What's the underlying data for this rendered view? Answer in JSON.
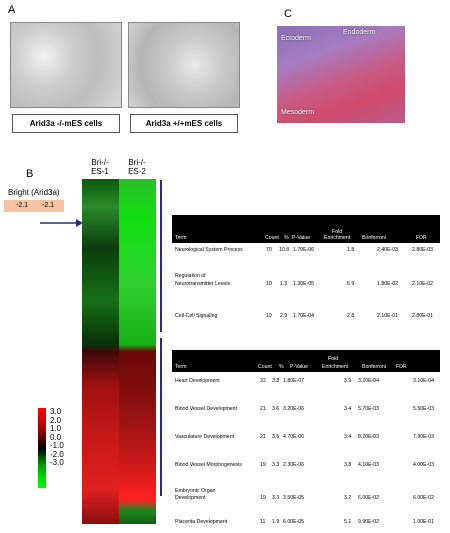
{
  "panels": {
    "a": "A",
    "b": "B",
    "c": "C"
  },
  "panel_a": {
    "caption_left": "Arid3a -/-mES cells",
    "caption_right": "Arid3a +/+mES cells"
  },
  "panel_c": {
    "label_ectoderm": "Ectoderm",
    "label_endoderm": "Endoderm",
    "label_mesoderm": "Mesoderm"
  },
  "heatmap": {
    "col1": [
      "Bri-/-",
      "ES-1"
    ],
    "col2": [
      "Bri-/-",
      "ES-2"
    ],
    "gene_label": "Bright (Arid3a)",
    "value1": "-2.1",
    "value2": "-2.1",
    "scale_ticks": [
      "3.0",
      "2.0",
      "1.0",
      "0.0",
      "-1.0",
      "-2.0",
      "-3.0"
    ]
  },
  "table1": {
    "headers": {
      "term": "Term",
      "count": "Count",
      "pct": "%",
      "pvalue": "P-Value",
      "fold1": "Fold",
      "fold2": "Enrichment",
      "bonf": "Bonferroni",
      "fdr": "FDR"
    },
    "rows": [
      {
        "term": [
          "Neurological System Process"
        ],
        "count": "70",
        "pct": "10.8",
        "pvalue": "1.70E-06",
        "fold": "1.8",
        "bonf": "2.40E-03",
        "fdr": "2.80E-03"
      },
      {
        "term": [
          "Regulation of",
          "Neurotransmitter Levels"
        ],
        "count": "10",
        "pct": "1.5",
        "pvalue": "1.30E-05",
        "fold": "6.9",
        "bonf": "1.80E-02",
        "fdr": "2.10E-02"
      },
      {
        "term": [
          "Cell-Cell Signaling"
        ],
        "count": "19",
        "pct": "2.9",
        "pvalue": "1.70E-04",
        "fold": "2.8",
        "bonf": "2.10E-01",
        "fdr": "2.80E-01"
      }
    ]
  },
  "table2": {
    "headers": {
      "term": "Term",
      "count": "Count",
      "pct": "%",
      "pvalue": "P-Value",
      "fold1": "Fold",
      "fold2": "Enrichment",
      "bonf": "Bonferroni",
      "fdr": "FDR"
    },
    "rows": [
      {
        "term": [
          "Heart Development"
        ],
        "count": "22",
        "pct": "3.8",
        "pvalue": "1.80E-07",
        "fold": "3.9",
        "bonf": "3.20E-04",
        "fdr": "3.10E-04"
      },
      {
        "term": [
          "Blood Vessel Development"
        ],
        "count": "21",
        "pct": "3.6",
        "pvalue": "3.20E-06",
        "fold": "3.4",
        "bonf": "5.70E-03",
        "fdr": "5.50E-03"
      },
      {
        "term": [
          "Vasculature Development"
        ],
        "count": "21",
        "pct": "3.6",
        "pvalue": "4.70E-06",
        "fold": "3.4",
        "bonf": "8.20E-03",
        "fdr": "7.90E-03"
      },
      {
        "term": [
          "Blood Vessel Morphogenesis"
        ],
        "count": "19",
        "pct": "3.3",
        "pvalue": "2.30E-06",
        "fold": "3.8",
        "bonf": "4.10E-03",
        "fdr": "4.00E-03"
      },
      {
        "term": [
          "Embryonic Organ",
          "Development"
        ],
        "count": "19",
        "pct": "3.3",
        "pvalue": "3.50E-05",
        "fold": "3.2",
        "bonf": "6.00E-02",
        "fdr": "6.00E-02"
      },
      {
        "term": [
          "Placenta Development"
        ],
        "count": "11",
        "pct": "1.9",
        "pvalue": "6.00E-05",
        "fold": "5.1",
        "bonf": "9.90E-02",
        "fdr": "1.00E-01"
      }
    ]
  }
}
